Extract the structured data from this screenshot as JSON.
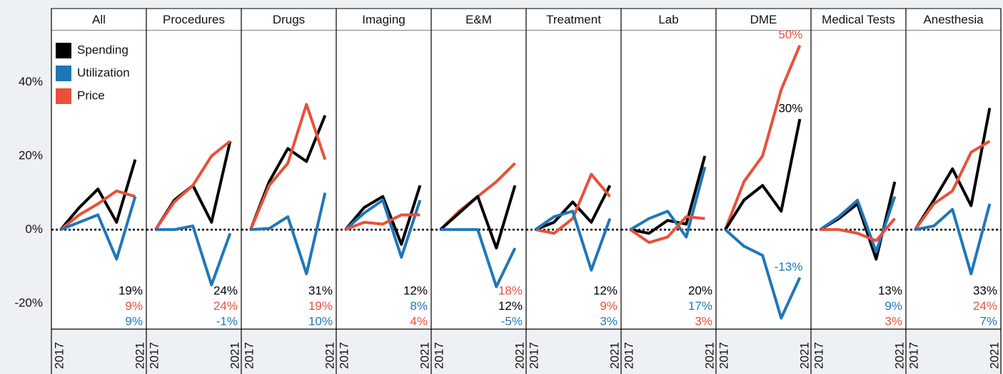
{
  "chart_data": {
    "type": "line",
    "x": [
      2017,
      2018,
      2019,
      2020,
      2021
    ],
    "xlim": [
      2016.5,
      2021.6
    ],
    "xticks": [
      2017,
      2021
    ],
    "ylim": [
      -27,
      54
    ],
    "yticks": [
      {
        "value": 40,
        "label": "40%"
      },
      {
        "value": 20,
        "label": "20%"
      },
      {
        "value": 0,
        "label": "0%"
      },
      {
        "value": -20,
        "label": "-20%"
      }
    ],
    "zero_line": true,
    "legend": [
      {
        "name": "Spending",
        "color": "#000000"
      },
      {
        "name": "Utilization",
        "color": "#1f77b8"
      },
      {
        "name": "Price",
        "color": "#e8503a"
      }
    ],
    "panels": [
      {
        "title": "All",
        "label_position": "bottom",
        "series": [
          {
            "name": "Spending",
            "color": "#000000",
            "values": [
              0,
              6,
              11,
              2,
              19
            ],
            "value_labels": [
              null,
              null,
              null,
              null,
              "19%"
            ]
          },
          {
            "name": "Price",
            "color": "#e8503a",
            "values": [
              0,
              4,
              7,
              10.5,
              9
            ],
            "value_labels": [
              null,
              null,
              null,
              null,
              "9%"
            ]
          },
          {
            "name": "Utilization",
            "color": "#1f77b8",
            "values": [
              0,
              2,
              4,
              -8,
              9
            ],
            "value_labels": [
              null,
              null,
              null,
              null,
              "9%"
            ]
          }
        ]
      },
      {
        "title": "Procedures",
        "label_position": "bottom",
        "series": [
          {
            "name": "Spending",
            "color": "#000000",
            "values": [
              0,
              8,
              12,
              2,
              24
            ],
            "value_labels": [
              null,
              null,
              null,
              null,
              "24%"
            ]
          },
          {
            "name": "Price",
            "color": "#e8503a",
            "values": [
              0,
              7.5,
              12,
              20,
              24
            ],
            "value_labels": [
              null,
              null,
              null,
              null,
              "24%"
            ]
          },
          {
            "name": "Utilization",
            "color": "#1f77b8",
            "values": [
              0,
              0,
              1,
              -15,
              -1
            ],
            "value_labels": [
              null,
              null,
              null,
              null,
              "-1%"
            ]
          }
        ]
      },
      {
        "title": "Drugs",
        "label_position": "bottom",
        "series": [
          {
            "name": "Spending",
            "color": "#000000",
            "values": [
              0,
              13,
              22,
              18.5,
              31
            ],
            "value_labels": [
              null,
              null,
              null,
              null,
              "31%"
            ]
          },
          {
            "name": "Price",
            "color": "#e8503a",
            "values": [
              0,
              12,
              18,
              34,
              19
            ],
            "value_labels": [
              null,
              null,
              null,
              null,
              "19%"
            ]
          },
          {
            "name": "Utilization",
            "color": "#1f77b8",
            "values": [
              0,
              0.3,
              3.5,
              -12,
              10
            ],
            "value_labels": [
              null,
              null,
              null,
              null,
              "10%"
            ]
          }
        ]
      },
      {
        "title": "Imaging",
        "label_position": "bottom",
        "series": [
          {
            "name": "Spending",
            "color": "#000000",
            "values": [
              0,
              6,
              9,
              -4,
              12
            ],
            "value_labels": [
              null,
              null,
              null,
              null,
              "12%"
            ]
          },
          {
            "name": "Utilization",
            "color": "#1f77b8",
            "values": [
              0,
              4.5,
              8,
              -7.5,
              8
            ],
            "value_labels": [
              null,
              null,
              null,
              null,
              "8%"
            ]
          },
          {
            "name": "Price",
            "color": "#e8503a",
            "values": [
              0,
              2,
              1.5,
              4,
              4
            ],
            "value_labels": [
              null,
              null,
              null,
              null,
              "4%"
            ]
          }
        ]
      },
      {
        "title": "E&M",
        "label_position": "bottom",
        "series": [
          {
            "name": "Price",
            "color": "#e8503a",
            "values": [
              0,
              5,
              9,
              13,
              18
            ],
            "value_labels": [
              null,
              null,
              null,
              null,
              "18%"
            ]
          },
          {
            "name": "Spending",
            "color": "#000000",
            "values": [
              0,
              4.5,
              9,
              -5,
              12
            ],
            "value_labels": [
              null,
              null,
              null,
              null,
              "12%"
            ]
          },
          {
            "name": "Utilization",
            "color": "#1f77b8",
            "values": [
              0,
              0,
              0,
              -15.5,
              -5
            ],
            "value_labels": [
              null,
              null,
              null,
              null,
              "-5%"
            ]
          }
        ]
      },
      {
        "title": "Treatment",
        "label_position": "bottom",
        "series": [
          {
            "name": "Spending",
            "color": "#000000",
            "values": [
              0,
              2,
              7.5,
              2,
              12
            ],
            "value_labels": [
              null,
              null,
              null,
              null,
              "12%"
            ]
          },
          {
            "name": "Price",
            "color": "#e8503a",
            "values": [
              0,
              -1,
              3,
              15,
              9
            ],
            "value_labels": [
              null,
              null,
              null,
              null,
              "9%"
            ]
          },
          {
            "name": "Utilization",
            "color": "#1f77b8",
            "values": [
              0,
              3.5,
              5,
              -11,
              3
            ],
            "value_labels": [
              null,
              null,
              null,
              null,
              "3%"
            ]
          }
        ]
      },
      {
        "title": "Lab",
        "label_position": "bottom",
        "series": [
          {
            "name": "Spending",
            "color": "#000000",
            "values": [
              0,
              -1,
              2.5,
              1.5,
              20
            ],
            "value_labels": [
              null,
              null,
              null,
              null,
              "20%"
            ]
          },
          {
            "name": "Utilization",
            "color": "#1f77b8",
            "values": [
              0,
              3,
              5,
              -2,
              17
            ],
            "value_labels": [
              null,
              null,
              null,
              null,
              "17%"
            ]
          },
          {
            "name": "Price",
            "color": "#e8503a",
            "values": [
              0,
              -3.5,
              -2,
              3.5,
              3
            ],
            "value_labels": [
              null,
              null,
              null,
              null,
              "3%"
            ]
          }
        ]
      },
      {
        "title": "DME",
        "label_position": "end",
        "series": [
          {
            "name": "Price",
            "color": "#e8503a",
            "values": [
              0,
              13,
              20,
              38,
              50
            ],
            "value_labels": [
              null,
              null,
              null,
              null,
              "50%"
            ]
          },
          {
            "name": "Spending",
            "color": "#000000",
            "values": [
              0,
              8,
              12,
              5,
              30
            ],
            "value_labels": [
              null,
              null,
              null,
              null,
              "30%"
            ]
          },
          {
            "name": "Utilization",
            "color": "#1f77b8",
            "values": [
              0,
              -4.5,
              -7,
              -24,
              -13
            ],
            "value_labels": [
              null,
              null,
              null,
              null,
              "-13%"
            ]
          }
        ]
      },
      {
        "title": "Medical Tests",
        "label_position": "bottom",
        "series": [
          {
            "name": "Spending",
            "color": "#000000",
            "values": [
              0,
              3,
              7,
              -8,
              13
            ],
            "value_labels": [
              null,
              null,
              null,
              null,
              "13%"
            ]
          },
          {
            "name": "Utilization",
            "color": "#1f77b8",
            "values": [
              0,
              3.5,
              8,
              -6,
              9
            ],
            "value_labels": [
              null,
              null,
              null,
              null,
              "9%"
            ]
          },
          {
            "name": "Price",
            "color": "#e8503a",
            "values": [
              0,
              0,
              -1,
              -3,
              3
            ],
            "value_labels": [
              null,
              null,
              null,
              null,
              "3%"
            ]
          }
        ]
      },
      {
        "title": "Anesthesia",
        "label_position": "bottom",
        "series": [
          {
            "name": "Spending",
            "color": "#000000",
            "values": [
              0,
              8,
              16.5,
              6.5,
              33
            ],
            "value_labels": [
              null,
              null,
              null,
              null,
              "33%"
            ]
          },
          {
            "name": "Price",
            "color": "#e8503a",
            "values": [
              0,
              7,
              10.5,
              21,
              24
            ],
            "value_labels": [
              null,
              null,
              null,
              null,
              "24%"
            ]
          },
          {
            "name": "Utilization",
            "color": "#1f77b8",
            "values": [
              0,
              1,
              5.5,
              -12,
              7
            ],
            "value_labels": [
              null,
              null,
              null,
              null,
              "7%"
            ]
          }
        ]
      }
    ]
  }
}
